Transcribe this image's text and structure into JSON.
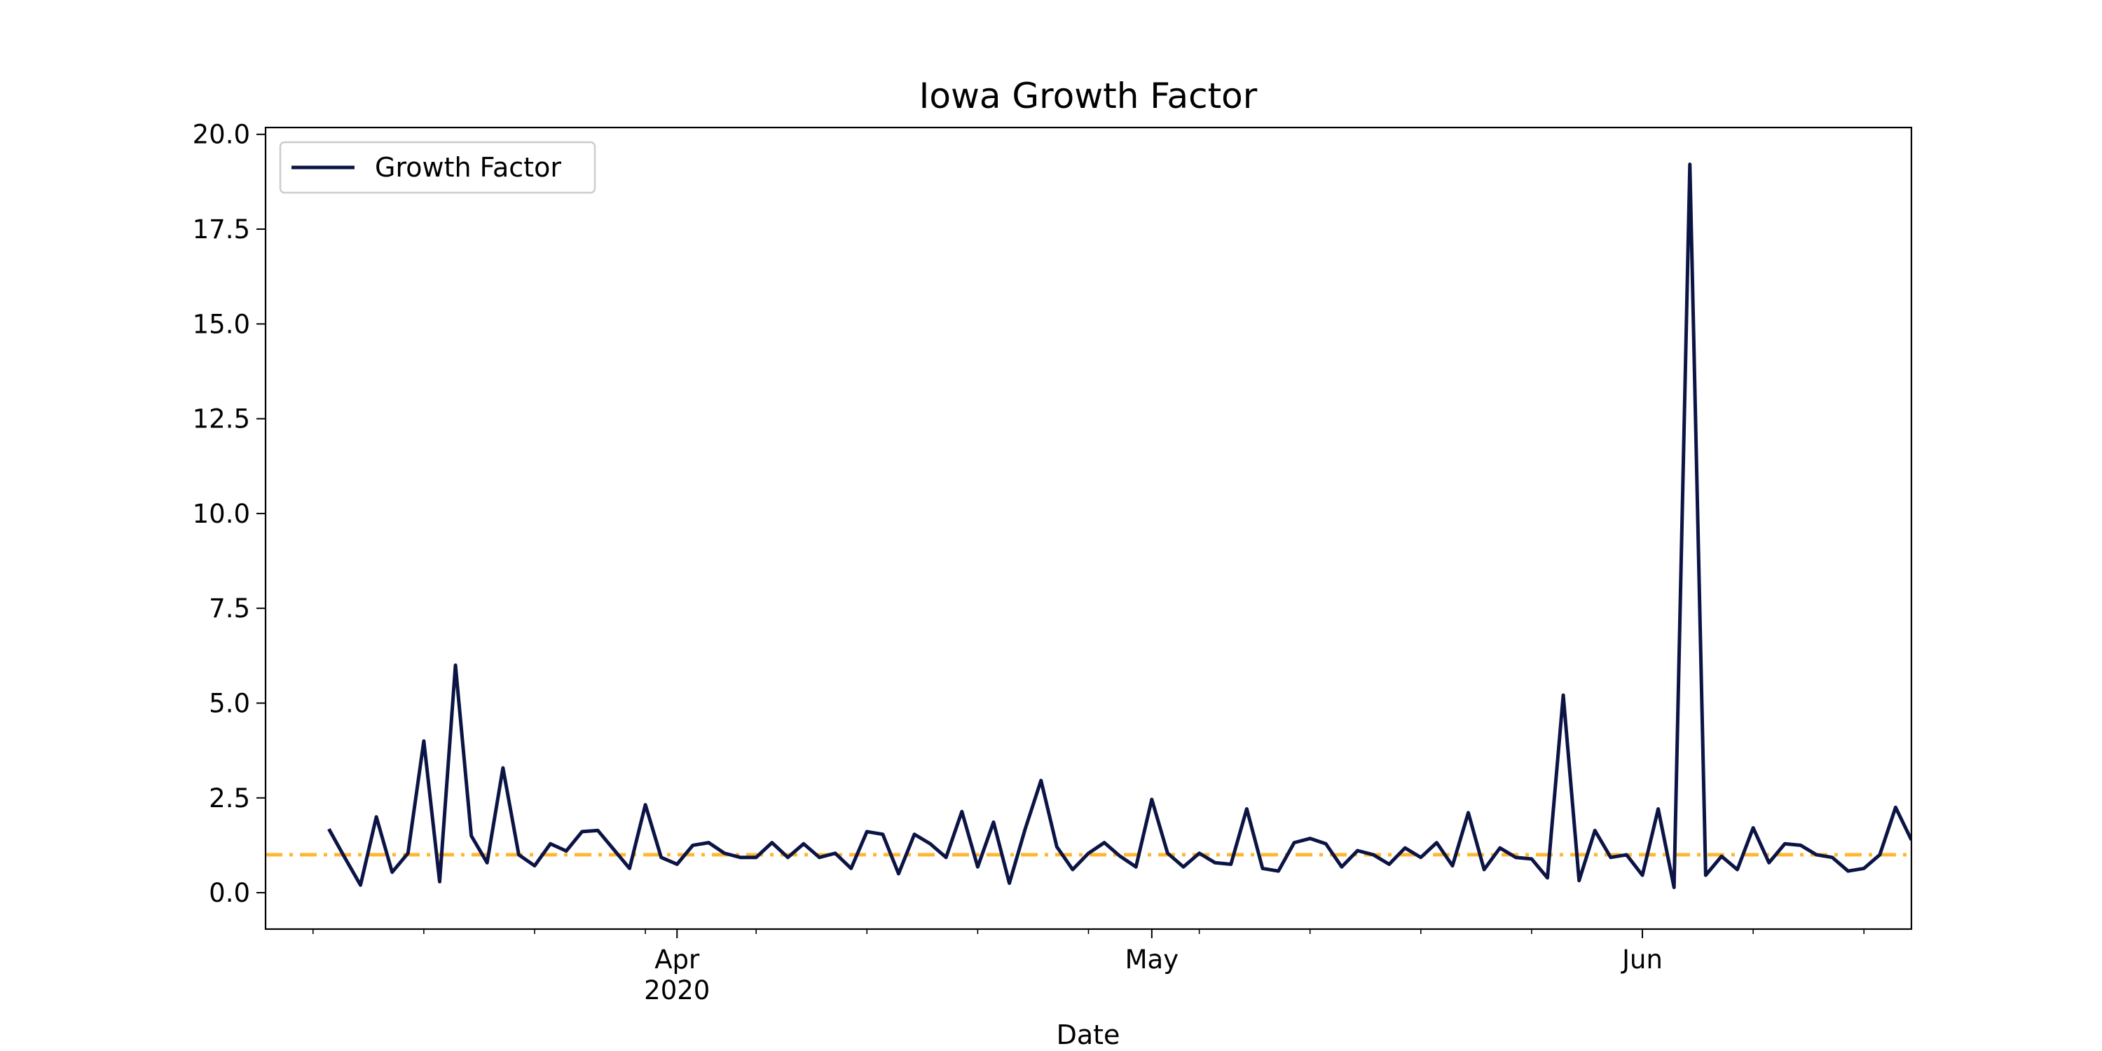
{
  "chart_data": {
    "type": "line",
    "title": "Iowa Growth Factor",
    "x_label": "Date",
    "x": [
      "2020-03-10",
      "2020-03-11",
      "2020-03-12",
      "2020-03-13",
      "2020-03-14",
      "2020-03-15",
      "2020-03-16",
      "2020-03-17",
      "2020-03-18",
      "2020-03-19",
      "2020-03-20",
      "2020-03-21",
      "2020-03-22",
      "2020-03-23",
      "2020-03-24",
      "2020-03-25",
      "2020-03-26",
      "2020-03-27",
      "2020-03-28",
      "2020-03-29",
      "2020-03-30",
      "2020-03-31",
      "2020-04-01",
      "2020-04-02",
      "2020-04-03",
      "2020-04-04",
      "2020-04-05",
      "2020-04-06",
      "2020-04-07",
      "2020-04-08",
      "2020-04-09",
      "2020-04-10",
      "2020-04-11",
      "2020-04-12",
      "2020-04-13",
      "2020-04-14",
      "2020-04-15",
      "2020-04-16",
      "2020-04-17",
      "2020-04-18",
      "2020-04-19",
      "2020-04-20",
      "2020-04-21",
      "2020-04-22",
      "2020-04-23",
      "2020-04-24",
      "2020-04-25",
      "2020-04-26",
      "2020-04-27",
      "2020-04-28",
      "2020-04-29",
      "2020-04-30",
      "2020-05-01",
      "2020-05-02",
      "2020-05-03",
      "2020-05-04",
      "2020-05-05",
      "2020-05-06",
      "2020-05-07",
      "2020-05-08",
      "2020-05-09",
      "2020-05-10",
      "2020-05-11",
      "2020-05-12",
      "2020-05-13",
      "2020-05-14",
      "2020-05-15",
      "2020-05-16",
      "2020-05-17",
      "2020-05-18",
      "2020-05-19",
      "2020-05-20",
      "2020-05-21",
      "2020-05-22",
      "2020-05-23",
      "2020-05-24",
      "2020-05-25",
      "2020-05-26",
      "2020-05-27",
      "2020-05-28",
      "2020-05-29",
      "2020-05-30",
      "2020-05-31",
      "2020-06-01",
      "2020-06-02",
      "2020-06-03",
      "2020-06-04",
      "2020-06-05",
      "2020-06-06",
      "2020-06-07",
      "2020-06-08",
      "2020-06-09",
      "2020-06-10",
      "2020-06-11",
      "2020-06-12",
      "2020-06-13",
      "2020-06-14",
      "2020-06-15",
      "2020-06-16",
      "2020-06-17",
      "2020-06-18"
    ],
    "series": [
      {
        "name": "Growth Factor",
        "color": "#0c1445",
        "values": [
          1.68,
          0.93,
          0.2,
          2.0,
          0.54,
          1.04,
          4.0,
          0.29,
          6.0,
          1.5,
          0.79,
          3.29,
          1.0,
          0.71,
          1.29,
          1.1,
          1.61,
          1.64,
          1.14,
          0.64,
          2.32,
          0.93,
          0.75,
          1.25,
          1.32,
          1.04,
          0.93,
          0.93,
          1.32,
          0.93,
          1.29,
          0.93,
          1.04,
          0.64,
          1.61,
          1.54,
          0.5,
          1.54,
          1.29,
          0.93,
          2.14,
          0.68,
          1.86,
          0.25,
          1.68,
          2.96,
          1.21,
          0.61,
          1.04,
          1.32,
          0.96,
          0.68,
          2.46,
          1.04,
          0.68,
          1.04,
          0.79,
          0.75,
          2.21,
          0.64,
          0.57,
          1.32,
          1.43,
          1.29,
          0.68,
          1.11,
          1.0,
          0.75,
          1.18,
          0.93,
          1.32,
          0.71,
          2.11,
          0.61,
          1.18,
          0.93,
          0.89,
          0.39,
          5.21,
          0.32,
          1.64,
          0.93,
          1.0,
          0.46,
          2.21,
          0.14,
          19.21,
          0.46,
          0.96,
          0.61,
          1.71,
          0.79,
          1.29,
          1.25,
          1.0,
          0.93,
          0.57,
          0.64,
          1.0,
          2.25,
          1.39
        ]
      }
    ],
    "reference_line": {
      "value": 1,
      "color": "#ffb733"
    },
    "xlim": [
      "2020-03-06",
      "2020-06-18"
    ],
    "xticks": [
      {
        "value": "2020-04-01",
        "label": "Apr"
      },
      {
        "value": "2020-05-01",
        "label": "May"
      },
      {
        "value": "2020-06-01",
        "label": "Jun"
      }
    ],
    "x_year_label": "2020",
    "xminorticks": [
      "2020-03-09",
      "2020-03-16",
      "2020-03-23",
      "2020-03-30",
      "2020-04-06",
      "2020-04-13",
      "2020-04-20",
      "2020-04-27",
      "2020-05-04",
      "2020-05-11",
      "2020-05-18",
      "2020-05-25",
      "2020-06-08",
      "2020-06-15"
    ],
    "ylim": [
      -0.96,
      20.18
    ],
    "yticks": [
      {
        "value": 0,
        "label": "0.0"
      },
      {
        "value": 2.5,
        "label": "2.5"
      },
      {
        "value": 5,
        "label": "5.0"
      },
      {
        "value": 7.5,
        "label": "7.5"
      },
      {
        "value": 10,
        "label": "10.0"
      },
      {
        "value": 12.5,
        "label": "12.5"
      },
      {
        "value": 15,
        "label": "15.0"
      },
      {
        "value": 17.5,
        "label": "17.5"
      },
      {
        "value": 20,
        "label": "20.0"
      }
    ],
    "legend": "upper left",
    "grid": false
  }
}
